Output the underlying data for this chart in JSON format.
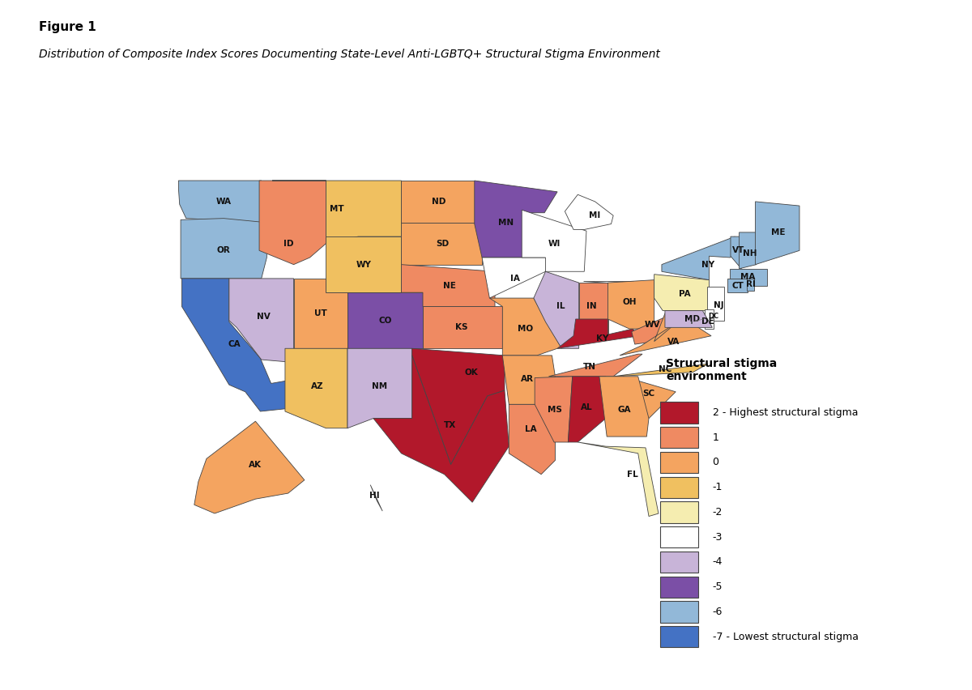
{
  "title_bold": "Figure 1",
  "title_italic": "Distribution of Composite Index Scores Documenting State-Level Anti-LGBTQ+ Structural Stigma Environment",
  "legend_title": "Structural stigma\nenvironment",
  "legend_labels": [
    "2 - Highest structural stigma",
    "1",
    "0",
    "-1",
    "-2",
    "-3",
    "-4",
    "-5",
    "-6",
    "-7 - Lowest structural stigma"
  ],
  "legend_colors": [
    "#b2182b",
    "#ef8a62",
    "#f4a460",
    "#f0c060",
    "#f5edb0",
    "#ffffff",
    "#c8b4d8",
    "#7b4fa6",
    "#92b8d8",
    "#4472c4"
  ],
  "score_colors": {
    "2": "#b2182b",
    "1": "#ef8a62",
    "0": "#f4a460",
    "-1": "#f0c060",
    "-2": "#f5edb0",
    "-3": "#ffffff",
    "-4": "#c8b4d8",
    "-5": "#7b4fa6",
    "-6": "#92b8d8",
    "-7": "#4472c4"
  },
  "state_scores": {
    "WA": "-6",
    "OR": "-6",
    "CA": "-7",
    "NV": "-4",
    "ID": "1",
    "MT": "-1",
    "WY": "-1",
    "UT": "0",
    "AZ": "-1",
    "CO": "-5",
    "NM": "-4",
    "ND": "0",
    "SD": "0",
    "NE": "1",
    "KS": "1",
    "OK": "2",
    "TX": "2",
    "MN": "-5",
    "IA": "-3",
    "MO": "0",
    "AR": "0",
    "LA": "1",
    "WI": "-3",
    "IL": "-4",
    "IN": "1",
    "KY": "2",
    "TN": "1",
    "MS": "1",
    "AL": "2",
    "MI": "-3",
    "OH": "0",
    "WV": "1",
    "VA": "0",
    "NC": "-1",
    "SC": "0",
    "GA": "0",
    "FL": "-2",
    "PA": "-2",
    "NY": "-6",
    "VT": "-6",
    "NH": "-6",
    "ME": "-6",
    "MA": "-6",
    "CT": "-6",
    "RI": "-6",
    "NJ": "-3",
    "DE": "-3",
    "MD": "-4",
    "DC": "-6",
    "AK": "0",
    "HI": "-3"
  },
  "border_color": "#444444",
  "border_lw": 0.6,
  "label_color": "#111111",
  "label_fontsize": 7.5,
  "background_color": "#ffffff",
  "fig_title_bold_size": 11,
  "fig_title_italic_size": 10,
  "legend_title_size": 10,
  "legend_label_size": 9
}
